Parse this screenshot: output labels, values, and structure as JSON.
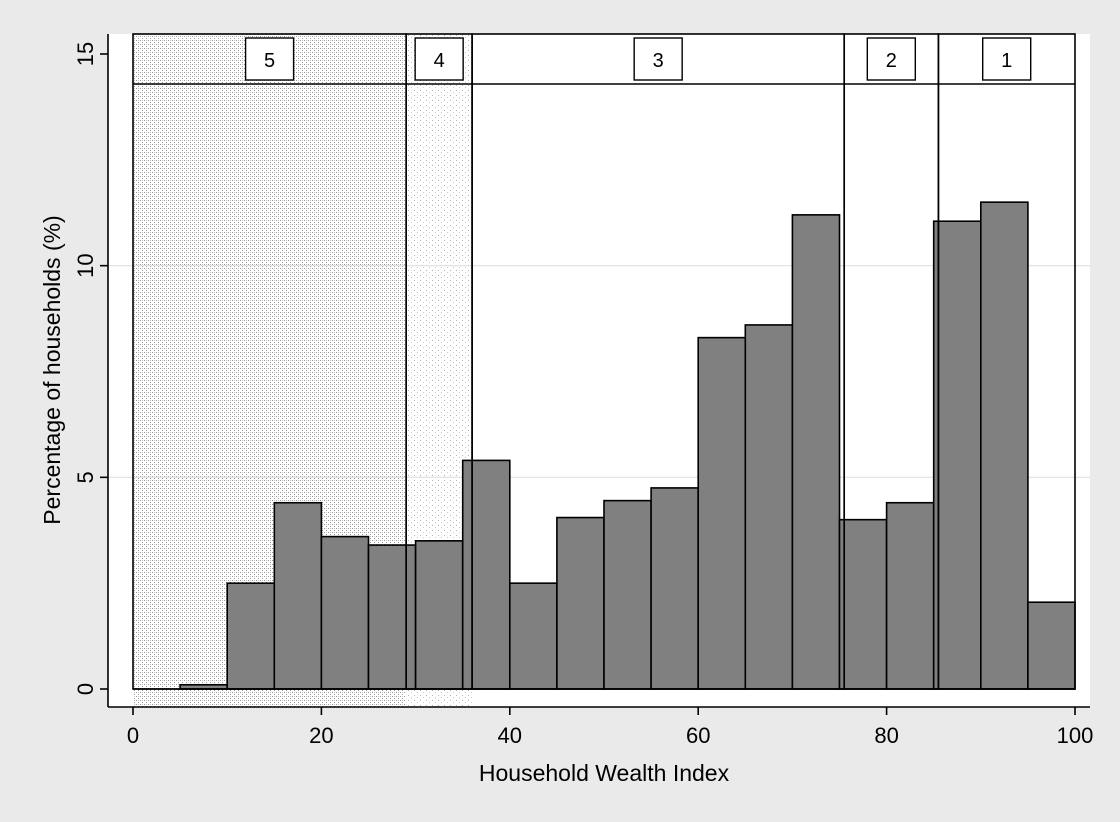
{
  "chart_data": {
    "type": "bar",
    "title": "",
    "xlabel": "Household Wealth Index",
    "ylabel": "Percentage of households (%)",
    "xlim": [
      0,
      100
    ],
    "ylim": [
      0,
      15
    ],
    "xticks": [
      0,
      20,
      40,
      60,
      80,
      100
    ],
    "yticks": [
      0,
      5,
      10,
      15
    ],
    "grid": "horizontal",
    "bin_width": 5,
    "bins": [
      {
        "start": 5,
        "value": 0.1
      },
      {
        "start": 10,
        "value": 2.5
      },
      {
        "start": 15,
        "value": 4.4
      },
      {
        "start": 20,
        "value": 3.6
      },
      {
        "start": 25,
        "value": 3.4
      },
      {
        "start": 30,
        "value": 3.5
      },
      {
        "start": 35,
        "value": 5.4
      },
      {
        "start": 40,
        "value": 2.5
      },
      {
        "start": 45,
        "value": 4.05
      },
      {
        "start": 50,
        "value": 4.45
      },
      {
        "start": 55,
        "value": 4.75
      },
      {
        "start": 60,
        "value": 8.3
      },
      {
        "start": 65,
        "value": 8.6
      },
      {
        "start": 70,
        "value": 11.2
      },
      {
        "start": 75,
        "value": 4.0
      },
      {
        "start": 80,
        "value": 4.4
      },
      {
        "start": 85,
        "value": 11.05
      },
      {
        "start": 90,
        "value": 11.5
      },
      {
        "start": 95,
        "value": 2.05
      }
    ],
    "groups": [
      {
        "label": "5",
        "from": 0,
        "to": 29
      },
      {
        "label": "4",
        "from": 29,
        "to": 36
      },
      {
        "label": "3",
        "from": 36,
        "to": 75.5
      },
      {
        "label": "2",
        "from": 75.5,
        "to": 85.5
      },
      {
        "label": "1",
        "from": 85.5,
        "to": 100
      }
    ]
  },
  "colors": {
    "background": "#eaeaea",
    "plot_area": "#ffffff",
    "bar_fill": "#808080",
    "bar_stroke": "#000000",
    "grid": "#e0e0e0",
    "group5_stipple": "#9a9a9a",
    "group4_stipple": "#b4b4b4"
  }
}
